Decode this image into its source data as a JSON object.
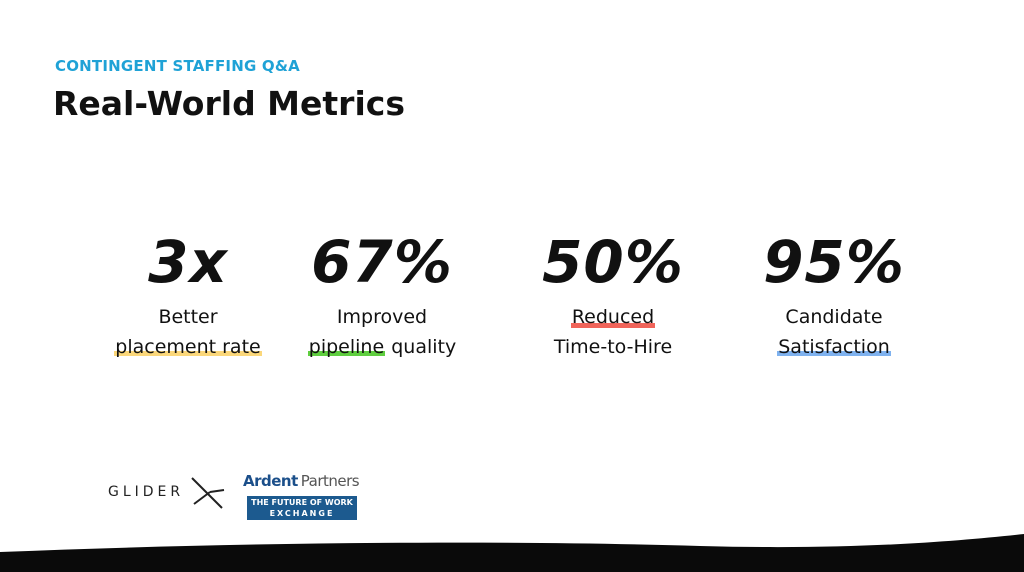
{
  "header": {
    "kicker": "CONTINGENT STAFFING Q&A",
    "title": "Real-World Metrics"
  },
  "metrics": [
    {
      "value": "3x",
      "lines": [
        [
          "Better"
        ],
        [
          "placement rate"
        ]
      ]
    },
    {
      "value": "67%",
      "lines": [
        [
          "Improved"
        ],
        [
          "pipeline",
          "quality"
        ]
      ]
    },
    {
      "value": "50%",
      "lines": [
        [
          "Reduced"
        ],
        [
          "Time-to-Hire"
        ]
      ]
    },
    {
      "value": "95%",
      "lines": [
        [
          "Candidate"
        ],
        [
          "Satisfaction"
        ]
      ]
    }
  ],
  "logos": {
    "glider": "GLIDER",
    "ardent": "Ardent",
    "partners": "Partners",
    "exchange_top": "THE FUTURE OF WORK",
    "exchange_bottom": "EXCHANGE"
  }
}
